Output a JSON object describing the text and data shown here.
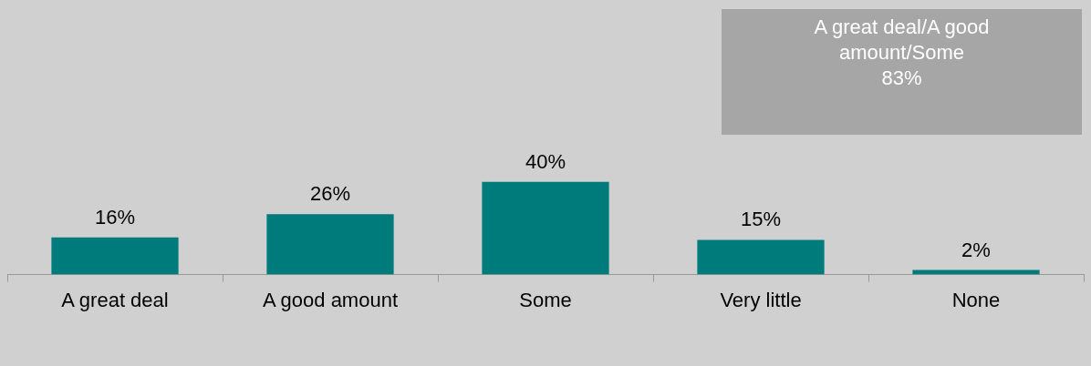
{
  "chart_data": {
    "type": "bar",
    "categories": [
      "A great deal",
      "A good amount",
      "Some",
      "Very little",
      "None"
    ],
    "values": [
      16,
      26,
      40,
      15,
      2
    ],
    "value_labels": [
      "16%",
      "26%",
      "40%",
      "15%",
      "2%"
    ],
    "color": "#007b7b",
    "grid": false,
    "legend": false,
    "annotations": [
      "A great deal/A good amount/Some\n83%"
    ]
  }
}
